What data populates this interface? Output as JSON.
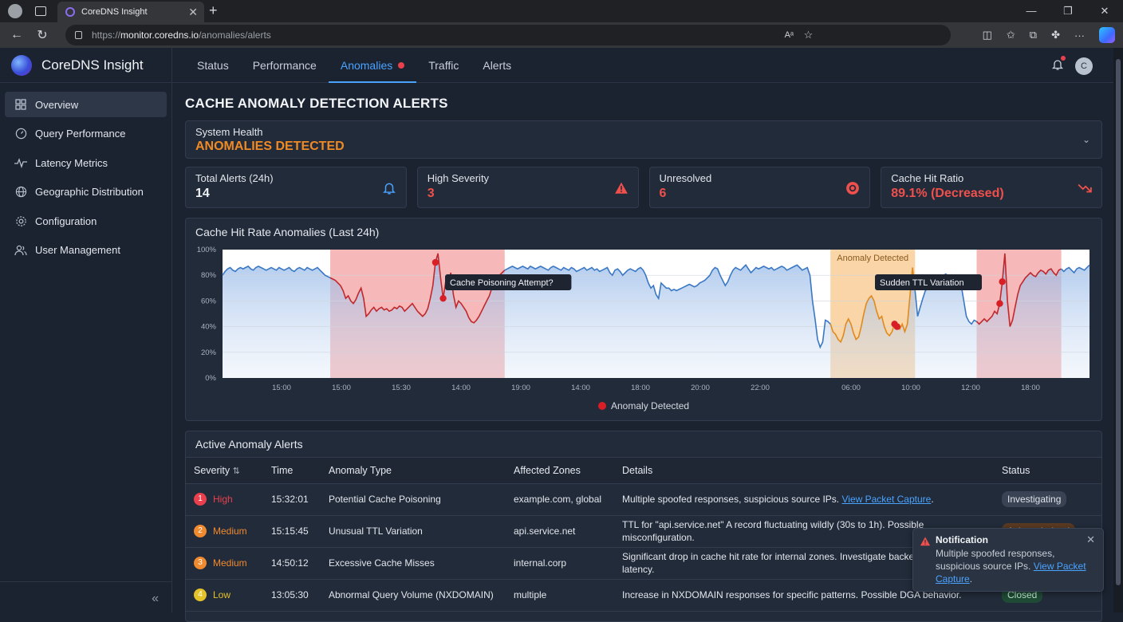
{
  "browser": {
    "tab_title": "CoreDNS Insight",
    "url_scheme": "https://",
    "url_host": "monitor.coredns.io",
    "url_path": "/anomalies/alerts"
  },
  "sidebar": {
    "brand": "CoreDNS Insight",
    "items": [
      {
        "label": "Overview",
        "icon": "grid-icon"
      },
      {
        "label": "Query Performance",
        "icon": "gauge-icon"
      },
      {
        "label": "Latency Metrics",
        "icon": "pulse-icon"
      },
      {
        "label": "Geographic Distribution",
        "icon": "globe-icon"
      },
      {
        "label": "Configuration",
        "icon": "gear-icon"
      },
      {
        "label": "User Management",
        "icon": "users-icon"
      }
    ],
    "collapse_glyph": "«"
  },
  "topnav": {
    "tabs": [
      "Status",
      "Performance",
      "Anomalies",
      "Traffic",
      "Alerts"
    ],
    "active": "Anomalies",
    "user_initial": "C"
  },
  "page": {
    "title": "CACHE ANOMALY DETECTION ALERTS",
    "health_label": "System Health",
    "health_value": "ANOMALIES DETECTED"
  },
  "stats": [
    {
      "label": "Total Alerts (24h)",
      "value": "14",
      "color": "#e6e9ef",
      "icon": "bell-icon"
    },
    {
      "label": "High Severity",
      "value": "3",
      "color": "#f0504c",
      "icon": "warning-icon"
    },
    {
      "label": "Unresolved",
      "value": "6",
      "color": "#f0504c",
      "icon": "alert-circle-icon"
    },
    {
      "label": "Cache Hit Ratio",
      "value": "89.1% (Decreased)",
      "color": "#f0504c",
      "icon": "trend-down-icon"
    }
  ],
  "chart_data": {
    "type": "line",
    "title": "Cache Hit Rate Anomalies (Last 24h)",
    "y_ticks": [
      "0%",
      "20%",
      "40%",
      "60%",
      "80%",
      "100%"
    ],
    "ylim": [
      0,
      100
    ],
    "x_ticks": [
      "15:00",
      "15:00",
      "15:30",
      "14:00",
      "19:00",
      "14:00",
      "18:00",
      "20:00",
      "22:00",
      "06:00",
      "10:00",
      "12:00",
      "18:00"
    ],
    "legend": "Anomaly Detected",
    "annotations": [
      "Cache Poisoning Attempt?",
      "Anomaly Detected",
      "Sudden TTL Variation"
    ],
    "regions": [
      {
        "start_index": 42,
        "end_index": 110,
        "color": "#f6b8b8"
      },
      {
        "start_index": 237,
        "end_index": 270,
        "color": "#f9d5a8"
      },
      {
        "start_index": 294,
        "end_index": 327,
        "color": "#f6b8b8"
      }
    ],
    "series_values": [
      80,
      83,
      85,
      86,
      84,
      83,
      85,
      86,
      85,
      86,
      87,
      85,
      84,
      86,
      87,
      86,
      85,
      84,
      85,
      86,
      85,
      84,
      86,
      85,
      84,
      85,
      86,
      84,
      83,
      85,
      86,
      85,
      84,
      86,
      85,
      84,
      85,
      86,
      84,
      82,
      80,
      79,
      78,
      77,
      76,
      74,
      72,
      68,
      62,
      64,
      60,
      58,
      61,
      66,
      70,
      62,
      48,
      50,
      53,
      55,
      52,
      54,
      55,
      53,
      54,
      52,
      53,
      55,
      54,
      56,
      55,
      52,
      54,
      56,
      58,
      55,
      52,
      50,
      48,
      50,
      54,
      62,
      72,
      90,
      97,
      78,
      62,
      75,
      73,
      82,
      65,
      55,
      60,
      58,
      55,
      52,
      47,
      44,
      43,
      45,
      48,
      52,
      56,
      60,
      64,
      70,
      74,
      78,
      80,
      82,
      84,
      85,
      86,
      87,
      86,
      85,
      86,
      87,
      86,
      85,
      87,
      86,
      85,
      86,
      87,
      86,
      85,
      84,
      86,
      87,
      86,
      85,
      84,
      86,
      85,
      84,
      86,
      85,
      83,
      84,
      85,
      86,
      84,
      85,
      86,
      84,
      85,
      83,
      84,
      85,
      86,
      82,
      80,
      84,
      85,
      83,
      80,
      82,
      84,
      85,
      84,
      83,
      85,
      86,
      84,
      80,
      74,
      70,
      72,
      65,
      62,
      74,
      72,
      70,
      70,
      68,
      69,
      68,
      69,
      70,
      71,
      72,
      73,
      72,
      71,
      72,
      74,
      75,
      76,
      78,
      80,
      84,
      86,
      85,
      80,
      76,
      72,
      75,
      80,
      84,
      86,
      85,
      84,
      86,
      88,
      85,
      82,
      84,
      86,
      85,
      86,
      87,
      86,
      85,
      86,
      84,
      85,
      86,
      87,
      86,
      84,
      85,
      86,
      87,
      88,
      86,
      84,
      85,
      86,
      80,
      60,
      46,
      30,
      24,
      28,
      45,
      44,
      42,
      36,
      34,
      30,
      28,
      33,
      42,
      46,
      42,
      35,
      30,
      32,
      40,
      50,
      58,
      62,
      64,
      60,
      52,
      46,
      48,
      40,
      35,
      33,
      36,
      42,
      40,
      38,
      42,
      36,
      42,
      64,
      86,
      68,
      48,
      55,
      62,
      68,
      70,
      72,
      75,
      76,
      78,
      79,
      80,
      81,
      79,
      78,
      80,
      79,
      78,
      72,
      60,
      48,
      44,
      42,
      45,
      44,
      42,
      44,
      46,
      44,
      46,
      48,
      52,
      50,
      58,
      75,
      97,
      60,
      40,
      45,
      55,
      65,
      72,
      75,
      78,
      80,
      82,
      80,
      79,
      82,
      84,
      83,
      81,
      84,
      85,
      82,
      80,
      84,
      85,
      83,
      85,
      86,
      84,
      82,
      85,
      86,
      85,
      84,
      86,
      88
    ]
  },
  "alerts": {
    "title": "Active Anomaly Alerts",
    "columns": [
      "Severity",
      "Time",
      "Anomaly Type",
      "Affected Zones",
      "Details",
      "Status"
    ],
    "sort_glyph": "⇅",
    "rows": [
      {
        "num": "1",
        "severity": "High",
        "sev_color": "#e8414d",
        "time": "15:32:01",
        "type": "Potential Cache Poisoning",
        "zones": "example.com, global",
        "details": "Multiple spoofed responses, suspicious source IPs. ",
        "link": "View Packet Capture",
        "after": ".",
        "status": "Investigating",
        "status_bg": "#3a4353",
        "status_fg": "#dfe3ea"
      },
      {
        "num": "2",
        "severity": "Medium",
        "sev_color": "#ef8a2e",
        "time": "15:15:45",
        "type": "Unusual TTL Variation",
        "zones": "api.service.net",
        "details": "TTL for \"api.service.net\" A record fluctuating wildly (30s to 1h). Possible misconfiguration.",
        "link": "",
        "after": "",
        "status": "Acknowledged",
        "status_bg": "#5a3a22",
        "status_fg": "#f2c9a2"
      },
      {
        "num": "3",
        "severity": "Medium",
        "sev_color": "#ef8a2e",
        "time": "14:50:12",
        "type": "Excessive Cache Misses",
        "zones": "internal.corp",
        "details": "Significant drop in cache hit rate for internal zones. Investigate backend server latency.",
        "link": "",
        "after": "",
        "status": "",
        "status_bg": "",
        "status_fg": ""
      },
      {
        "num": "4",
        "severity": "Low",
        "sev_color": "#e3c22a",
        "time": "13:05:30",
        "type": "Abnormal Query Volume (NXDOMAIN)",
        "zones": "multiple",
        "details": "Increase in NXDOMAIN responses for specific patterns. Possible DGA behavior.",
        "link": "",
        "after": "",
        "status": "Closed",
        "status_bg": "#1f4a35",
        "status_fg": "#bfe8cf"
      }
    ]
  },
  "toast": {
    "title": "Notification",
    "body": "Multiple spoofed responses, suspicious source IPs. ",
    "link": "View Packet Capture",
    "after": "."
  }
}
